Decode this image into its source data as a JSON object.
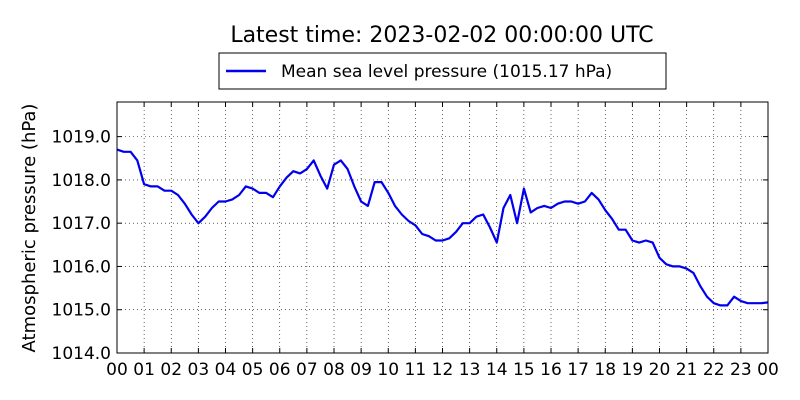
{
  "chart_data": {
    "type": "line",
    "title": "Latest time: 2023-02-02 00:00:00 UTC",
    "xlabel": "",
    "ylabel": "Atmospheric pressure (hPa)",
    "xlim": [
      0,
      24
    ],
    "ylim": [
      1014.0,
      1019.8
    ],
    "grid": true,
    "legend_position": "top-center",
    "x_tick_labels": [
      "00",
      "01",
      "02",
      "03",
      "04",
      "05",
      "06",
      "07",
      "08",
      "09",
      "10",
      "11",
      "12",
      "13",
      "14",
      "15",
      "16",
      "17",
      "18",
      "19",
      "20",
      "21",
      "22",
      "23",
      "00"
    ],
    "y_ticks": [
      1014.0,
      1015.0,
      1016.0,
      1017.0,
      1018.0,
      1019.0
    ],
    "y_tick_labels": [
      "1014.0",
      "1015.0",
      "1016.0",
      "1017.0",
      "1018.0",
      "1019.0"
    ],
    "series": [
      {
        "name": "Mean sea level pressure (1015.17 hPa)",
        "color": "#0000ee",
        "x": [
          0.0,
          0.25,
          0.5,
          0.75,
          1.0,
          1.25,
          1.5,
          1.75,
          2.0,
          2.25,
          2.5,
          2.75,
          3.0,
          3.25,
          3.5,
          3.75,
          4.0,
          4.25,
          4.5,
          4.75,
          5.0,
          5.25,
          5.5,
          5.75,
          6.0,
          6.25,
          6.5,
          6.75,
          7.0,
          7.25,
          7.5,
          7.75,
          8.0,
          8.25,
          8.5,
          8.75,
          9.0,
          9.25,
          9.5,
          9.75,
          10.0,
          10.25,
          10.5,
          10.75,
          11.0,
          11.25,
          11.5,
          11.75,
          12.0,
          12.25,
          12.5,
          12.75,
          13.0,
          13.25,
          13.5,
          13.75,
          14.0,
          14.25,
          14.5,
          14.75,
          15.0,
          15.25,
          15.5,
          15.75,
          16.0,
          16.25,
          16.5,
          16.75,
          17.0,
          17.25,
          17.5,
          17.75,
          18.0,
          18.25,
          18.5,
          18.75,
          19.0,
          19.25,
          19.5,
          19.75,
          20.0,
          20.25,
          20.5,
          20.75,
          21.0,
          21.25,
          21.5,
          21.75,
          22.0,
          22.25,
          22.5,
          22.75,
          23.0,
          23.25,
          23.5,
          23.75,
          24.0
        ],
        "y": [
          1018.7,
          1018.65,
          1018.65,
          1018.45,
          1017.9,
          1017.85,
          1017.85,
          1017.75,
          1017.75,
          1017.65,
          1017.45,
          1017.2,
          1017.0,
          1017.15,
          1017.35,
          1017.5,
          1017.5,
          1017.55,
          1017.65,
          1017.85,
          1017.8,
          1017.7,
          1017.7,
          1017.6,
          1017.85,
          1018.05,
          1018.2,
          1018.15,
          1018.25,
          1018.45,
          1018.1,
          1017.8,
          1018.35,
          1018.45,
          1018.25,
          1017.85,
          1017.5,
          1017.4,
          1017.95,
          1017.95,
          1017.7,
          1017.4,
          1017.2,
          1017.05,
          1016.95,
          1016.75,
          1016.7,
          1016.6,
          1016.6,
          1016.65,
          1016.8,
          1017.0,
          1017.0,
          1017.15,
          1017.2,
          1016.9,
          1016.55,
          1017.35,
          1017.65,
          1017.0,
          1017.8,
          1017.25,
          1017.35,
          1017.4,
          1017.35,
          1017.45,
          1017.5,
          1017.5,
          1017.45,
          1017.5,
          1017.7,
          1017.55,
          1017.3,
          1017.1,
          1016.85,
          1016.85,
          1016.6,
          1016.55,
          1016.6,
          1016.55,
          1016.2,
          1016.05,
          1016.0,
          1016.0,
          1015.95,
          1015.85,
          1015.55,
          1015.3,
          1015.15,
          1015.1,
          1015.1,
          1015.3,
          1015.2,
          1015.15,
          1015.15,
          1015.15,
          1015.17
        ]
      }
    ]
  }
}
